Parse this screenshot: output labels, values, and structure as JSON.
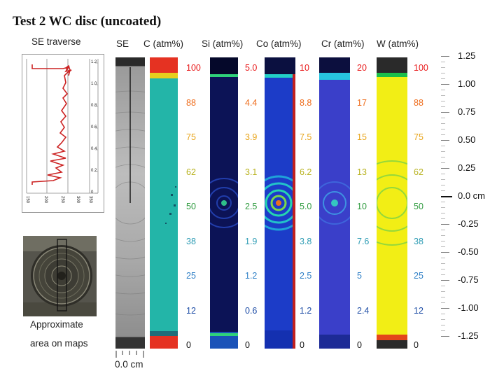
{
  "title": "Test 2 WC disc (uncoated)",
  "se_traverse": {
    "label": "SE traverse",
    "x_ticks": [
      "150",
      "200",
      "250",
      "300",
      "350"
    ],
    "y_ticks": [
      "1.2",
      "1.0",
      "0.8",
      "0.6",
      "0.4",
      "0.2",
      "0"
    ]
  },
  "photo_caption": {
    "line1": "Approximate",
    "line2": "area on maps"
  },
  "columns": [
    {
      "name": "SE",
      "scale": []
    },
    {
      "name": "C (atm%)",
      "scale": [
        "100",
        "88",
        "75",
        "62",
        "50",
        "38",
        "25",
        "12",
        "0"
      ]
    },
    {
      "name": "Si (atm%)",
      "scale": [
        "5.0",
        "4.4",
        "3.9",
        "3.1",
        "2.5",
        "1.9",
        "1.2",
        "0.6",
        "0"
      ]
    },
    {
      "name": "Co (atm%)",
      "scale": [
        "10",
        "8.8",
        "7.5",
        "6.2",
        "5.0",
        "3.8",
        "2.5",
        "1.2",
        "0"
      ]
    },
    {
      "name": "Cr (atm%)",
      "scale": [
        "20",
        "17",
        "15",
        "13",
        "10",
        "7.6",
        "5",
        "2.4",
        "0"
      ]
    },
    {
      "name": "W (atm%)",
      "scale": [
        "100",
        "88",
        "75",
        "62",
        "50",
        "38",
        "25",
        "12",
        "0"
      ]
    }
  ],
  "scale_colors": [
    "#e8191a",
    "#ee6b1a",
    "#e8a51b",
    "#b8b21f",
    "#2f9b3f",
    "#2e9cb4",
    "#2e7fc6",
    "#1f4ea6",
    "#111111"
  ],
  "vertical_axis": [
    "1.25",
    "1.00",
    "0.75",
    "0.50",
    "0.25",
    "0.0 cm",
    "-0.25",
    "-0.50",
    "-0.75",
    "-1.00",
    "-1.25"
  ],
  "horizontal_scale_label": "0.0 cm"
}
